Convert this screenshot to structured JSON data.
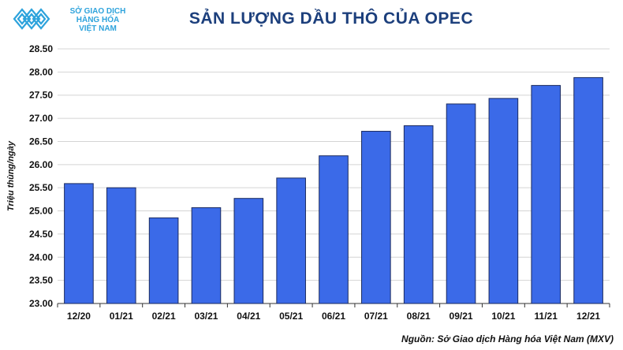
{
  "header": {
    "brand_lines": [
      "SỞ GIAO DỊCH",
      "HÀNG HÓA",
      "VIỆT NAM"
    ],
    "brand_color": "#2ea3dc",
    "logo_icon": "diamond-lattice-logo-icon"
  },
  "chart_data": {
    "type": "bar",
    "title": "SẢN LƯỢNG DẦU THÔ CỦA OPEC",
    "xlabel": "",
    "ylabel": "Triệu thùng/ngày",
    "categories": [
      "12/20",
      "01/21",
      "02/21",
      "03/21",
      "04/21",
      "05/21",
      "06/21",
      "07/21",
      "08/21",
      "09/21",
      "10/21",
      "11/21",
      "12/21"
    ],
    "values": [
      25.59,
      25.5,
      24.85,
      25.07,
      25.27,
      25.71,
      26.19,
      26.72,
      26.84,
      27.31,
      27.43,
      27.71,
      27.88
    ],
    "ylim": [
      23.0,
      28.5
    ],
    "yticks": [
      "23.00",
      "23.50",
      "24.00",
      "24.50",
      "25.00",
      "25.50",
      "26.00",
      "26.50",
      "27.00",
      "27.50",
      "28.00",
      "28.50"
    ],
    "bar_color": "#3b6ae8",
    "bar_outline": "#1a2a5e",
    "grid": true,
    "legend": "none"
  },
  "footer": {
    "source": "Nguồn: Sở Giao dịch Hàng hóa Việt Nam (MXV)"
  }
}
